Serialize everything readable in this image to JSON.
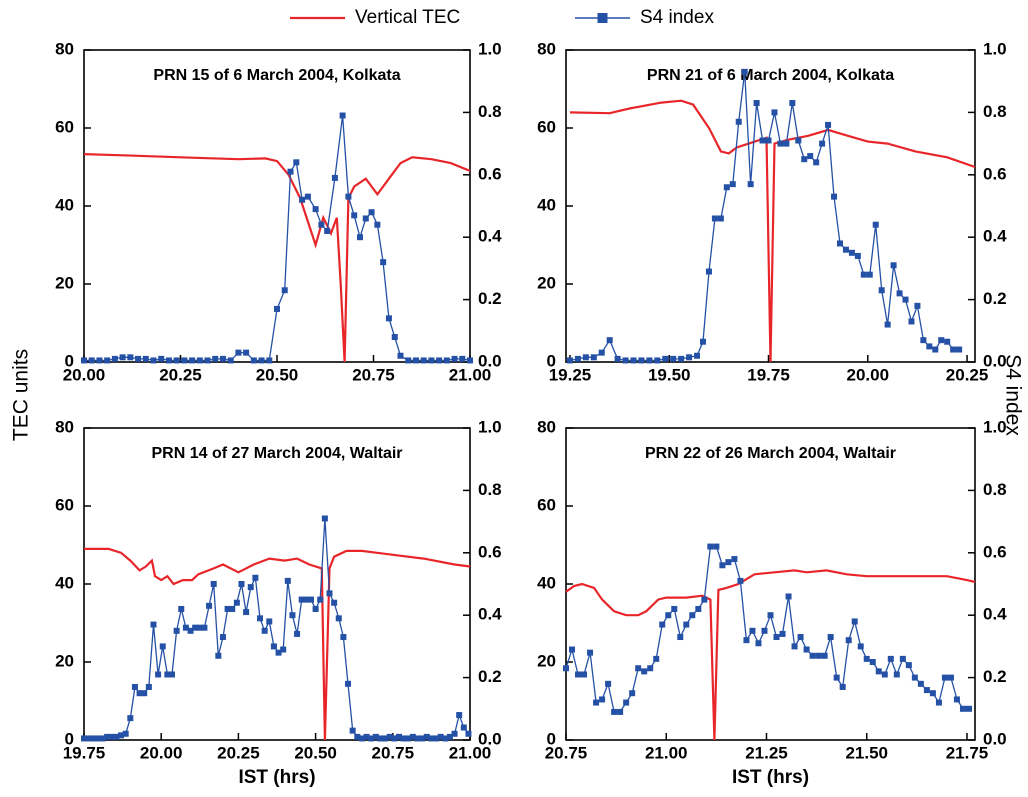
{
  "chart_data": [
    {
      "type": "line",
      "title": "PRN 15 of 6 March 2004, Kolkata",
      "ylabel": "TEC units",
      "xlim": [
        20,
        21
      ],
      "xticks": [
        {
          "value": 20,
          "label": "20.00"
        },
        20.25,
        {
          "value": 20.5,
          "label": "20.50"
        },
        20.75,
        {
          "value": 21,
          "label": "21.00"
        }
      ],
      "ylim": [
        0,
        80
      ],
      "yticks": [
        0,
        20,
        40,
        60,
        80
      ],
      "y2lim": [
        0,
        1
      ],
      "y2ticks": [
        {
          "value": 0,
          "label": "0.0"
        },
        0.2,
        0.4,
        0.6,
        0.8,
        {
          "value": 1,
          "label": "1.0"
        }
      ],
      "series": [
        {
          "name": "Vertical TEC",
          "color": "#e8262a",
          "x": [
            20.0,
            20.1,
            20.25,
            20.4,
            20.47,
            20.5,
            20.53,
            20.56,
            20.58,
            20.6,
            20.62,
            20.64,
            20.655,
            20.665,
            20.675,
            20.685,
            20.7,
            20.73,
            20.76,
            20.79,
            20.82,
            20.85,
            20.9,
            20.95,
            21.0
          ],
          "values": [
            53.3,
            53.0,
            52.5,
            52.0,
            52.2,
            51.5,
            48,
            42,
            36,
            30,
            37,
            33,
            37,
            20,
            0,
            42,
            45,
            47,
            43,
            47,
            51,
            52.5,
            52,
            51,
            49
          ]
        },
        {
          "name": "S4 index",
          "color": "#2451a6",
          "axis": "y2",
          "marker": "square",
          "x": [
            20.0,
            20.02,
            20.04,
            20.06,
            20.08,
            20.1,
            20.12,
            20.14,
            20.16,
            20.18,
            20.2,
            20.22,
            20.24,
            20.26,
            20.28,
            20.3,
            20.32,
            20.34,
            20.36,
            20.38,
            20.4,
            20.42,
            20.44,
            20.46,
            20.48,
            20.5,
            20.52,
            20.535,
            20.55,
            20.565,
            20.58,
            20.6,
            20.615,
            20.63,
            20.65,
            20.67,
            20.685,
            20.7,
            20.715,
            20.73,
            20.745,
            20.76,
            20.775,
            20.79,
            20.805,
            20.82,
            20.84,
            20.86,
            20.88,
            20.9,
            20.92,
            20.94,
            20.96,
            20.98,
            21.0
          ],
          "values": [
            0.005,
            0.005,
            0.005,
            0.005,
            0.01,
            0.015,
            0.015,
            0.01,
            0.01,
            0.005,
            0.01,
            0.005,
            0.005,
            0.005,
            0.005,
            0.005,
            0.005,
            0.01,
            0.01,
            0.005,
            0.03,
            0.03,
            0.005,
            0.005,
            0.005,
            0.17,
            0.23,
            0.61,
            0.64,
            0.52,
            0.53,
            0.49,
            0.44,
            0.42,
            0.59,
            0.79,
            0.53,
            0.47,
            0.4,
            0.46,
            0.48,
            0.44,
            0.32,
            0.14,
            0.08,
            0.02,
            0.005,
            0.005,
            0.005,
            0.005,
            0.005,
            0.005,
            0.01,
            0.01,
            0.005
          ]
        }
      ]
    },
    {
      "type": "line",
      "title": "PRN 21 of 6 March 2004, Kolkata",
      "y2label": "S4 index",
      "xlim": [
        19.24,
        20.27
      ],
      "xticks": [
        19.25,
        {
          "value": 19.5,
          "label": "19.50"
        },
        19.75,
        {
          "value": 20,
          "label": "20.00"
        },
        20.25
      ],
      "ylim": [
        0,
        80
      ],
      "yticks": [
        0,
        20,
        40,
        60,
        80
      ],
      "y2lim": [
        0,
        1
      ],
      "y2ticks": [
        {
          "value": 0,
          "label": "0.0"
        },
        0.2,
        0.4,
        0.6,
        0.8,
        {
          "value": 1,
          "label": "1.0"
        }
      ],
      "series": [
        {
          "name": "Vertical TEC",
          "color": "#e8262a",
          "x": [
            19.25,
            19.35,
            19.4,
            19.48,
            19.53,
            19.56,
            19.6,
            19.63,
            19.65,
            19.67,
            19.7,
            19.73,
            19.745,
            19.755,
            19.765,
            19.8,
            19.85,
            19.9,
            19.95,
            20.0,
            20.05,
            20.12,
            20.2,
            20.27
          ],
          "values": [
            64,
            63.8,
            65,
            66.5,
            67,
            66,
            60,
            54,
            53.5,
            55,
            56,
            57,
            57.5,
            0,
            56,
            57,
            58,
            59.5,
            58,
            56.5,
            56,
            54,
            52.5,
            50
          ]
        },
        {
          "name": "S4 index",
          "color": "#2451a6",
          "axis": "y2",
          "marker": "square",
          "x": [
            19.25,
            19.27,
            19.29,
            19.31,
            19.33,
            19.35,
            19.37,
            19.39,
            19.41,
            19.43,
            19.45,
            19.47,
            19.49,
            19.51,
            19.53,
            19.55,
            19.57,
            19.585,
            19.6,
            19.615,
            19.63,
            19.645,
            19.66,
            19.675,
            19.69,
            19.705,
            19.72,
            19.735,
            19.75,
            19.765,
            19.78,
            19.795,
            19.81,
            19.825,
            19.84,
            19.855,
            19.87,
            19.885,
            19.9,
            19.915,
            19.93,
            19.945,
            19.96,
            19.975,
            19.99,
            20.005,
            20.02,
            20.035,
            20.05,
            20.065,
            20.08,
            20.095,
            20.11,
            20.125,
            20.14,
            20.155,
            20.17,
            20.185,
            20.2,
            20.215,
            20.23
          ],
          "values": [
            0.005,
            0.01,
            0.015,
            0.015,
            0.03,
            0.07,
            0.01,
            0.005,
            0.005,
            0.005,
            0.005,
            0.005,
            0.01,
            0.01,
            0.01,
            0.015,
            0.02,
            0.065,
            0.29,
            0.46,
            0.46,
            0.56,
            0.57,
            0.77,
            0.93,
            0.57,
            0.83,
            0.71,
            0.71,
            0.8,
            0.7,
            0.7,
            0.83,
            0.71,
            0.65,
            0.66,
            0.64,
            0.7,
            0.76,
            0.53,
            0.38,
            0.36,
            0.35,
            0.34,
            0.28,
            0.28,
            0.44,
            0.23,
            0.12,
            0.31,
            0.22,
            0.2,
            0.13,
            0.18,
            0.07,
            0.05,
            0.04,
            0.07,
            0.065,
            0.04,
            0.04
          ]
        }
      ]
    },
    {
      "type": "line",
      "title": "PRN 14 of 27 March 2004, Waltair",
      "xlabel": "IST (hrs)",
      "xlim": [
        19.75,
        21
      ],
      "xticks": [
        19.75,
        {
          "value": 20,
          "label": "20.00"
        },
        20.25,
        {
          "value": 20.5,
          "label": "20.50"
        },
        20.75,
        {
          "value": 21,
          "label": "21.00"
        }
      ],
      "ylim": [
        0,
        80
      ],
      "yticks": [
        0,
        20,
        40,
        60,
        80
      ],
      "y2lim": [
        0,
        1
      ],
      "y2ticks": [
        {
          "value": 0,
          "label": "0.0"
        },
        0.2,
        0.4,
        0.6,
        0.8,
        {
          "value": 1,
          "label": "1.0"
        }
      ],
      "series": [
        {
          "name": "Vertical TEC",
          "color": "#e8262a",
          "x": [
            19.75,
            19.83,
            19.87,
            19.9,
            19.93,
            19.95,
            19.97,
            19.98,
            20.0,
            20.02,
            20.04,
            20.07,
            20.1,
            20.12,
            20.17,
            20.2,
            20.25,
            20.3,
            20.35,
            20.4,
            20.44,
            20.48,
            20.52,
            20.53,
            20.545,
            20.56,
            20.6,
            20.65,
            20.75,
            20.85,
            20.95,
            21.0
          ],
          "values": [
            49,
            49,
            48,
            46,
            43.5,
            44.5,
            46,
            42,
            41,
            42,
            40,
            41,
            41,
            42.5,
            44,
            45,
            43,
            45,
            46.5,
            46,
            46.5,
            45,
            44,
            0,
            44,
            47,
            48.5,
            48.5,
            47.5,
            46.5,
            45,
            44.5
          ]
        },
        {
          "name": "S4 index",
          "color": "#2451a6",
          "axis": "y2",
          "marker": "square",
          "x": [
            19.75,
            19.765,
            19.78,
            19.795,
            19.81,
            19.825,
            19.84,
            19.855,
            19.87,
            19.885,
            19.9,
            19.915,
            19.93,
            19.945,
            19.96,
            19.975,
            19.99,
            20.005,
            20.02,
            20.035,
            20.05,
            20.065,
            20.08,
            20.095,
            20.11,
            20.125,
            20.14,
            20.155,
            20.17,
            20.185,
            20.2,
            20.215,
            20.23,
            20.245,
            20.26,
            20.275,
            20.29,
            20.305,
            20.32,
            20.335,
            20.35,
            20.365,
            20.38,
            20.395,
            20.41,
            20.425,
            20.44,
            20.455,
            20.47,
            20.485,
            20.5,
            20.515,
            20.53,
            20.545,
            20.56,
            20.575,
            20.59,
            20.605,
            20.62,
            20.635,
            20.65,
            20.665,
            20.68,
            20.695,
            20.71,
            20.725,
            20.74,
            20.755,
            20.77,
            20.785,
            20.8,
            20.815,
            20.83,
            20.845,
            20.86,
            20.875,
            20.89,
            20.905,
            20.92,
            20.935,
            20.95,
            20.965,
            20.98,
            20.995
          ],
          "values": [
            0.005,
            0.005,
            0.005,
            0.005,
            0.005,
            0.01,
            0.01,
            0.01,
            0.015,
            0.02,
            0.07,
            0.17,
            0.15,
            0.15,
            0.17,
            0.37,
            0.21,
            0.3,
            0.21,
            0.21,
            0.35,
            0.42,
            0.36,
            0.35,
            0.36,
            0.36,
            0.36,
            0.43,
            0.5,
            0.27,
            0.33,
            0.42,
            0.42,
            0.44,
            0.5,
            0.41,
            0.49,
            0.52,
            0.39,
            0.35,
            0.38,
            0.3,
            0.28,
            0.29,
            0.51,
            0.4,
            0.34,
            0.45,
            0.45,
            0.45,
            0.42,
            0.45,
            0.71,
            0.47,
            0.44,
            0.39,
            0.33,
            0.18,
            0.03,
            0.01,
            0.005,
            0.01,
            0.005,
            0.01,
            0.005,
            0.005,
            0.01,
            0.005,
            0.01,
            0.005,
            0.005,
            0.01,
            0.005,
            0.005,
            0.01,
            0.005,
            0.005,
            0.01,
            0.005,
            0.01,
            0.02,
            0.08,
            0.04,
            0.02
          ]
        }
      ]
    },
    {
      "type": "line",
      "title": "PRN 22 of 26 March 2004, Waltair",
      "xlabel": "IST (hrs)",
      "xlim": [
        20.75,
        21.77
      ],
      "xticks": [
        20.75,
        {
          "value": 21,
          "label": "21.00"
        },
        21.25,
        {
          "value": 21.5,
          "label": "21.50"
        },
        21.75
      ],
      "ylim": [
        0,
        80
      ],
      "yticks": [
        0,
        20,
        40,
        60,
        80
      ],
      "y2lim": [
        0,
        1
      ],
      "y2ticks": [
        {
          "value": 0,
          "label": "0.0"
        },
        0.2,
        0.4,
        0.6,
        0.8,
        {
          "value": 1,
          "label": "1.0"
        }
      ],
      "series": [
        {
          "name": "Vertical TEC",
          "color": "#e8262a",
          "x": [
            20.75,
            20.77,
            20.79,
            20.82,
            20.84,
            20.87,
            20.9,
            20.93,
            20.95,
            20.98,
            21.0,
            21.05,
            21.09,
            21.11,
            21.12,
            21.13,
            21.15,
            21.18,
            21.22,
            21.27,
            21.32,
            21.35,
            21.4,
            21.45,
            21.5,
            21.6,
            21.7,
            21.75,
            21.77
          ],
          "values": [
            38,
            39.5,
            40,
            39,
            36,
            33,
            32,
            32,
            33,
            36,
            36.5,
            36.5,
            37,
            36,
            0,
            38.5,
            39,
            40,
            42.5,
            43,
            43.5,
            43,
            43.5,
            42.5,
            42,
            42,
            42,
            41,
            40.5
          ]
        },
        {
          "name": "S4 index",
          "color": "#2451a6",
          "axis": "y2",
          "marker": "square",
          "x": [
            20.75,
            20.765,
            20.78,
            20.795,
            20.81,
            20.825,
            20.84,
            20.855,
            20.87,
            20.885,
            20.9,
            20.915,
            20.93,
            20.945,
            20.96,
            20.975,
            20.99,
            21.005,
            21.02,
            21.035,
            21.05,
            21.065,
            21.08,
            21.095,
            21.11,
            21.125,
            21.14,
            21.155,
            21.17,
            21.185,
            21.2,
            21.215,
            21.23,
            21.245,
            21.26,
            21.275,
            21.29,
            21.305,
            21.32,
            21.335,
            21.35,
            21.365,
            21.38,
            21.395,
            21.41,
            21.425,
            21.44,
            21.455,
            21.47,
            21.485,
            21.5,
            21.515,
            21.53,
            21.545,
            21.56,
            21.575,
            21.59,
            21.605,
            21.62,
            21.635,
            21.65,
            21.665,
            21.68,
            21.695,
            21.71,
            21.725,
            21.74,
            21.755
          ],
          "values": [
            0.23,
            0.29,
            0.21,
            0.21,
            0.28,
            0.12,
            0.13,
            0.18,
            0.09,
            0.09,
            0.12,
            0.15,
            0.23,
            0.22,
            0.23,
            0.26,
            0.37,
            0.4,
            0.42,
            0.33,
            0.37,
            0.4,
            0.42,
            0.45,
            0.62,
            0.62,
            0.56,
            0.57,
            0.58,
            0.51,
            0.32,
            0.35,
            0.31,
            0.35,
            0.4,
            0.33,
            0.34,
            0.46,
            0.3,
            0.33,
            0.29,
            0.27,
            0.27,
            0.27,
            0.33,
            0.2,
            0.17,
            0.32,
            0.38,
            0.3,
            0.26,
            0.25,
            0.22,
            0.21,
            0.26,
            0.21,
            0.26,
            0.24,
            0.2,
            0.18,
            0.16,
            0.15,
            0.12,
            0.2,
            0.2,
            0.13,
            0.1,
            0.1
          ]
        }
      ]
    }
  ]
}
